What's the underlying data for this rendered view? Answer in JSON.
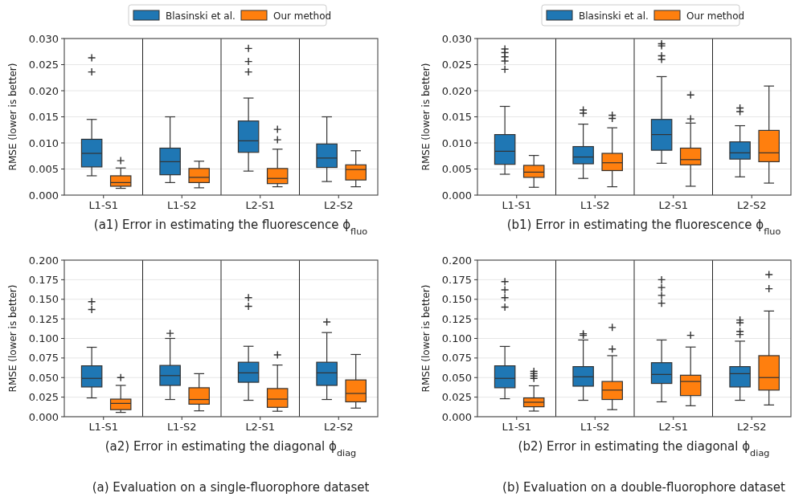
{
  "chart_data": [
    {
      "type": "box",
      "xlabel": "(a1) Error in estimating the fluorescence ϕ$_{fluo}$",
      "ylabel": "RMSE (lower is better)",
      "categories": [
        "L1-S1",
        "L1-S2",
        "L2-S1",
        "L2-S2"
      ],
      "ylim": [
        0,
        0.03
      ],
      "yticks": [
        {
          "value": 0,
          "label": "0.000"
        },
        {
          "value": 0.005,
          "label": "0.005"
        },
        {
          "value": 0.01,
          "label": "0.010"
        },
        {
          "value": 0.015,
          "label": "0.015"
        },
        {
          "value": 0.02,
          "label": "0.020"
        },
        {
          "value": 0.025,
          "label": "0.025"
        },
        {
          "value": 0.03,
          "label": "0.030"
        }
      ],
      "grid": "y",
      "legend": "top",
      "marker": "cross",
      "series": [
        {
          "name": "Blasinski et al.",
          "color": "#1f77b4",
          "boxes": [
            {
              "low": 0.0037,
              "q1": 0.0054,
              "median": 0.008,
              "q3": 0.0107,
              "high": 0.0145,
              "outliers": [
                0.0263,
                0.0236
              ]
            },
            {
              "low": 0.0024,
              "q1": 0.0039,
              "median": 0.0064,
              "q3": 0.009,
              "high": 0.015
            },
            {
              "low": 0.0046,
              "q1": 0.0082,
              "median": 0.0104,
              "q3": 0.0142,
              "high": 0.0186,
              "outliers": [
                0.0281,
                0.0256,
                0.0236
              ]
            },
            {
              "low": 0.0026,
              "q1": 0.0053,
              "median": 0.0071,
              "q3": 0.0098,
              "high": 0.015
            }
          ]
        },
        {
          "name": "Our method",
          "color": "#ff7f0e",
          "boxes": [
            {
              "low": 0.0013,
              "q1": 0.0017,
              "median": 0.0024,
              "q3": 0.0037,
              "high": 0.0052,
              "outliers": [
                0.0066
              ]
            },
            {
              "low": 0.0014,
              "q1": 0.0024,
              "median": 0.0034,
              "q3": 0.0051,
              "high": 0.0065
            },
            {
              "low": 0.0016,
              "q1": 0.0022,
              "median": 0.0032,
              "q3": 0.0051,
              "high": 0.0088,
              "outliers": [
                0.0126,
                0.0106
              ]
            },
            {
              "low": 0.0016,
              "q1": 0.0029,
              "median": 0.0049,
              "q3": 0.0058,
              "high": 0.0085
            }
          ]
        }
      ]
    },
    {
      "type": "box",
      "xlabel": "(b1) Error in estimating the fluorescence ϕ$_{fluo}$",
      "ylabel": "RMSE (lower is better)",
      "categories": [
        "L1-S1",
        "L1-S2",
        "L2-S1",
        "L2-S2"
      ],
      "ylim": [
        0,
        0.03
      ],
      "yticks": [
        {
          "value": 0,
          "label": "0.000"
        },
        {
          "value": 0.005,
          "label": "0.005"
        },
        {
          "value": 0.01,
          "label": "0.010"
        },
        {
          "value": 0.015,
          "label": "0.015"
        },
        {
          "value": 0.02,
          "label": "0.020"
        },
        {
          "value": 0.025,
          "label": "0.025"
        },
        {
          "value": 0.03,
          "label": "0.030"
        }
      ],
      "grid": "y",
      "legend": "top",
      "marker": "cross",
      "series": [
        {
          "name": "Blasinski et al.",
          "color": "#1f77b4",
          "boxes": [
            {
              "low": 0.004,
              "q1": 0.0059,
              "median": 0.0084,
              "q3": 0.0116,
              "high": 0.017,
              "outliers": [
                0.028,
                0.0273,
                0.0265,
                0.0257,
                0.0241
              ]
            },
            {
              "low": 0.0032,
              "q1": 0.006,
              "median": 0.0073,
              "q3": 0.0093,
              "high": 0.0136,
              "outliers": [
                0.0163,
                0.0157
              ]
            },
            {
              "low": 0.0061,
              "q1": 0.0086,
              "median": 0.0116,
              "q3": 0.0145,
              "high": 0.0227,
              "outliers": [
                0.029,
                0.0286,
                0.0267,
                0.026
              ]
            },
            {
              "low": 0.0035,
              "q1": 0.0069,
              "median": 0.0081,
              "q3": 0.0102,
              "high": 0.0133,
              "outliers": [
                0.0167,
                0.016
              ]
            }
          ]
        },
        {
          "name": "Our method",
          "color": "#ff7f0e",
          "boxes": [
            {
              "low": 0.0015,
              "q1": 0.0034,
              "median": 0.0044,
              "q3": 0.0057,
              "high": 0.0076
            },
            {
              "low": 0.0016,
              "q1": 0.0047,
              "median": 0.0062,
              "q3": 0.008,
              "high": 0.0129,
              "outliers": [
                0.0153,
                0.0147
              ]
            },
            {
              "low": 0.0017,
              "q1": 0.0058,
              "median": 0.0068,
              "q3": 0.009,
              "high": 0.0138,
              "outliers": [
                0.0192,
                0.0146
              ]
            },
            {
              "low": 0.0023,
              "q1": 0.0064,
              "median": 0.0081,
              "q3": 0.0124,
              "high": 0.0209
            }
          ]
        }
      ]
    },
    {
      "type": "box",
      "xlabel": "(a2) Error in estimating the diagonal ϕ$_{diag}$",
      "ylabel": "RMSE (lower is better)",
      "annotations": [
        "(a) Evaluation on a single-fluorophore dataset"
      ],
      "categories": [
        "L1-S1",
        "L1-S2",
        "L2-S1",
        "L2-S2"
      ],
      "ylim": [
        0,
        0.2
      ],
      "yticks": [
        {
          "value": 0,
          "label": "0.000"
        },
        {
          "value": 0.025,
          "label": "0.025"
        },
        {
          "value": 0.05,
          "label": "0.050"
        },
        {
          "value": 0.075,
          "label": "0.075"
        },
        {
          "value": 0.1,
          "label": "0.100"
        },
        {
          "value": 0.125,
          "label": "0.125"
        },
        {
          "value": 0.15,
          "label": "0.150"
        },
        {
          "value": 0.175,
          "label": "0.175"
        },
        {
          "value": 0.2,
          "label": "0.200"
        }
      ],
      "grid": "y",
      "marker": "cross",
      "series": [
        {
          "color": "#1f77b4",
          "boxes": [
            {
              "low": 0.024,
              "q1": 0.038,
              "median": 0.049,
              "q3": 0.065,
              "high": 0.0887,
              "outliers": [
                0.147,
                0.137
              ]
            },
            {
              "low": 0.022,
              "q1": 0.04,
              "median": 0.0525,
              "q3": 0.0655,
              "high": 0.1,
              "outliers": [
                0.1065
              ]
            },
            {
              "low": 0.021,
              "q1": 0.044,
              "median": 0.056,
              "q3": 0.0696,
              "high": 0.09,
              "outliers": [
                0.152,
                0.141
              ]
            },
            {
              "low": 0.022,
              "q1": 0.04,
              "median": 0.056,
              "q3": 0.0696,
              "high": 0.1075,
              "outliers": [
                0.121
              ]
            }
          ]
        },
        {
          "color": "#ff7f0e",
          "boxes": [
            {
              "low": 0.0055,
              "q1": 0.009,
              "median": 0.017,
              "q3": 0.0225,
              "high": 0.04,
              "outliers": [
                0.05
              ]
            },
            {
              "low": 0.0075,
              "q1": 0.016,
              "median": 0.022,
              "q3": 0.037,
              "high": 0.055
            },
            {
              "low": 0.007,
              "q1": 0.012,
              "median": 0.0225,
              "q3": 0.036,
              "high": 0.066,
              "outliers": [
                0.079
              ]
            },
            {
              "low": 0.011,
              "q1": 0.019,
              "median": 0.0297,
              "q3": 0.047,
              "high": 0.0795
            }
          ]
        }
      ]
    },
    {
      "type": "box",
      "xlabel": "(b2) Error in estimating the diagonal ϕ$_{diag}$",
      "ylabel": "RMSE (lower is better)",
      "annotations": [
        "(b) Evaluation on a double-fluorophore dataset"
      ],
      "categories": [
        "L1-S1",
        "L1-S2",
        "L2-S1",
        "L2-S2"
      ],
      "ylim": [
        0,
        0.2
      ],
      "yticks": [
        {
          "value": 0,
          "label": "0.000"
        },
        {
          "value": 0.025,
          "label": "0.025"
        },
        {
          "value": 0.05,
          "label": "0.050"
        },
        {
          "value": 0.075,
          "label": "0.075"
        },
        {
          "value": 0.1,
          "label": "0.100"
        },
        {
          "value": 0.125,
          "label": "0.125"
        },
        {
          "value": 0.15,
          "label": "0.150"
        },
        {
          "value": 0.175,
          "label": "0.175"
        },
        {
          "value": 0.2,
          "label": "0.200"
        }
      ],
      "grid": "y",
      "marker": "cross",
      "series": [
        {
          "color": "#1f77b4",
          "boxes": [
            {
              "low": 0.023,
              "q1": 0.037,
              "median": 0.049,
              "q3": 0.065,
              "high": 0.0898,
              "outliers": [
                0.1726,
                0.162,
                0.152,
                0.14
              ]
            },
            {
              "low": 0.021,
              "q1": 0.039,
              "median": 0.051,
              "q3": 0.064,
              "high": 0.098,
              "outliers": [
                0.106,
                0.104
              ]
            },
            {
              "low": 0.019,
              "q1": 0.0425,
              "median": 0.054,
              "q3": 0.069,
              "high": 0.098,
              "outliers": [
                0.175,
                0.165,
                0.155,
                0.145
              ]
            },
            {
              "low": 0.021,
              "q1": 0.038,
              "median": 0.055,
              "q3": 0.064,
              "high": 0.0965,
              "outliers": [
                0.1235,
                0.12,
                0.109,
                0.105
              ]
            }
          ]
        },
        {
          "color": "#ff7f0e",
          "boxes": [
            {
              "low": 0.0072,
              "q1": 0.0127,
              "median": 0.0185,
              "q3": 0.024,
              "high": 0.0395,
              "outliers": [
                0.058,
                0.055,
                0.052,
                0.049
              ]
            },
            {
              "low": 0.009,
              "q1": 0.022,
              "median": 0.034,
              "q3": 0.045,
              "high": 0.078,
              "outliers": [
                0.114,
                0.0864
              ]
            },
            {
              "low": 0.014,
              "q1": 0.027,
              "median": 0.045,
              "q3": 0.053,
              "high": 0.089,
              "outliers": [
                0.104
              ]
            },
            {
              "low": 0.015,
              "q1": 0.034,
              "median": 0.05,
              "q3": 0.078,
              "high": 0.135,
              "outliers": [
                0.1815,
                0.1635
              ]
            }
          ]
        }
      ]
    }
  ]
}
